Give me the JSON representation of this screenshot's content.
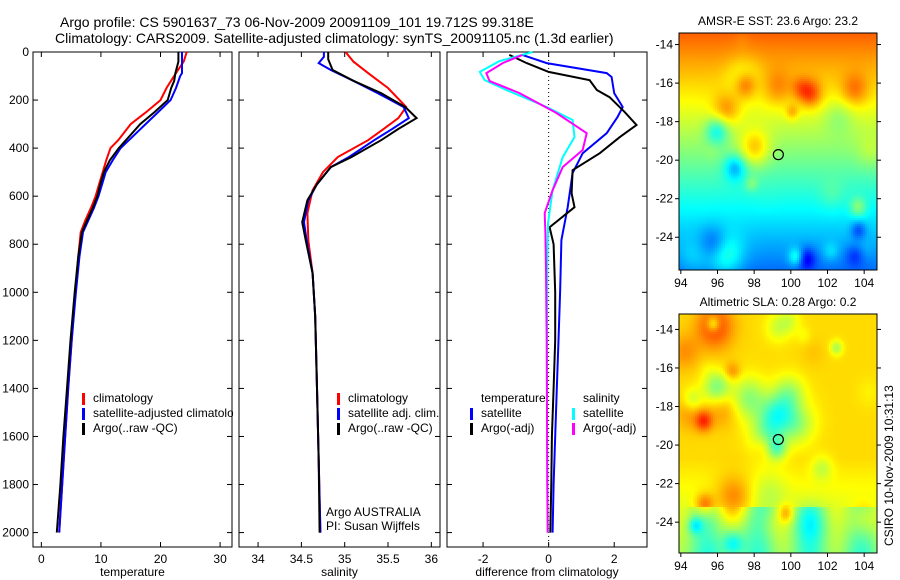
{
  "title_line1": "Argo profile: CS 5901637_73 06-Nov-2009 20091109_101 19.712S 99.318E",
  "title_line2": "Climatology: CARS2009. Satellite-adjusted climatology: synTS_20091105.nc (1.3d earlier)",
  "side_stamp": "CSIRO 10-Nov-2009 10:31:13",
  "colors": {
    "climatology": "#ff0000",
    "satellite": "#0000ff",
    "argo": "#000000",
    "sal_satellite": "#00ffff",
    "sal_argo": "#ff00ff"
  },
  "legends": {
    "temperature": [
      "climatology",
      "satellite-adjusted climatology",
      "Argo(..raw -QC)"
    ],
    "salinity": [
      "climatology",
      "satellite adj. clim.",
      "Argo(..raw -QC)"
    ],
    "diff_temp_header": "temperature",
    "diff_temp": [
      "satellite",
      "Argo(-adj)"
    ],
    "diff_sal_header": "salinity",
    "diff_sal": [
      "satellite",
      "Argo(-adj)"
    ]
  },
  "float_info": {
    "line1": "Argo AUSTRALIA",
    "line2": "PI: Susan Wijffels"
  },
  "chart_data": [
    {
      "type": "line",
      "id": "temperature",
      "xlabel": "temperature",
      "ylabel": "",
      "xlim": [
        -1.4,
        32
      ],
      "ylim": [
        0,
        2060
      ],
      "xticks": [
        0,
        10,
        20,
        30
      ],
      "yticks": [
        0,
        200,
        400,
        600,
        800,
        1000,
        1200,
        1400,
        1600,
        1800,
        2000
      ],
      "series": [
        {
          "name": "climatology",
          "color": "#ff0000",
          "depth": [
            0,
            40,
            88,
            150,
            200,
            250,
            300,
            367,
            400,
            450,
            500,
            550,
            600,
            650,
            700,
            750,
            850,
            1000,
            1200,
            1400,
            1600,
            1800,
            2000
          ],
          "values": [
            24.4,
            23.9,
            22.6,
            21.0,
            20.0,
            17.6,
            15.0,
            12.9,
            11.6,
            10.9,
            10.3,
            9.7,
            9.1,
            8.3,
            7.4,
            6.6,
            6.2,
            5.7,
            5.1,
            4.5,
            4.0,
            3.5,
            3.0
          ]
        },
        {
          "name": "satellite-adjusted climatology",
          "color": "#0000ff",
          "depth": [
            0,
            60,
            88,
            100,
            150,
            200,
            250,
            300,
            367,
            400,
            450,
            500,
            550,
            600,
            650,
            700,
            750,
            850,
            1000,
            1200,
            1400,
            1600,
            1800,
            2000
          ],
          "values": [
            23.6,
            23.6,
            23.6,
            23.3,
            22.6,
            21.7,
            19.6,
            17.5,
            14.7,
            13.3,
            12.0,
            10.8,
            10.2,
            9.6,
            8.8,
            7.9,
            7.0,
            6.4,
            5.8,
            5.1,
            4.5,
            4.0,
            3.5,
            3.0
          ]
        },
        {
          "name": "Argo(..raw -QC)",
          "color": "#000000",
          "depth": [
            0,
            40,
            88,
            120,
            150,
            200,
            250,
            300,
            367,
            400,
            450,
            500,
            550,
            600,
            650,
            700,
            750,
            850,
            1000,
            1200,
            1400,
            1600,
            1800,
            2000
          ],
          "values": [
            23.0,
            23.0,
            22.5,
            22.3,
            21.8,
            21.2,
            19.0,
            16.6,
            14.2,
            13.0,
            11.5,
            10.5,
            9.9,
            9.4,
            8.6,
            7.7,
            6.8,
            6.2,
            5.6,
            4.9,
            4.3,
            3.7,
            3.2,
            2.6
          ]
        }
      ]
    },
    {
      "type": "line",
      "id": "salinity",
      "xlabel": "salinity",
      "ylabel": "",
      "xlim": [
        33.78,
        36.1
      ],
      "ylim": [
        0,
        2060
      ],
      "xticks": [
        34,
        34.5,
        35,
        35.5,
        36
      ],
      "yticks": [
        0,
        200,
        400,
        600,
        800,
        1000,
        1200,
        1400,
        1600,
        1800,
        2000
      ],
      "series": [
        {
          "name": "climatology",
          "color": "#ff0000",
          "depth": [
            0,
            40,
            88,
            150,
            229,
            275,
            320,
            367,
            437,
            500,
            575,
            671,
            783,
            921,
            1100,
            1400,
            1700,
            2000
          ],
          "values": [
            35.01,
            35.1,
            35.27,
            35.5,
            35.71,
            35.62,
            35.45,
            35.27,
            34.92,
            34.75,
            34.63,
            34.57,
            34.58,
            34.63,
            34.66,
            34.68,
            34.7,
            34.72
          ]
        },
        {
          "name": "satellite adj. clim.",
          "color": "#0000ff",
          "depth": [
            0,
            20,
            46,
            75,
            120,
            171,
            229,
            275,
            320,
            367,
            437,
            479,
            550,
            617,
            708,
            783,
            921,
            1100,
            1400,
            1700,
            2000
          ],
          "values": [
            34.76,
            34.76,
            34.7,
            34.84,
            35.1,
            35.38,
            35.68,
            35.74,
            35.55,
            35.34,
            35.05,
            34.84,
            34.68,
            34.58,
            34.53,
            34.56,
            34.63,
            34.66,
            34.68,
            34.7,
            34.72
          ]
        },
        {
          "name": "Argo(..raw -QC)",
          "color": "#000000",
          "depth": [
            0,
            10,
            30,
            75,
            120,
            171,
            229,
            275,
            320,
            367,
            437,
            479,
            550,
            617,
            708,
            783,
            921,
            1100,
            1400,
            1700,
            2000
          ],
          "values": [
            34.81,
            34.81,
            34.81,
            34.86,
            35.1,
            35.42,
            35.7,
            35.83,
            35.62,
            35.42,
            35.08,
            34.84,
            34.68,
            34.57,
            34.51,
            34.55,
            34.63,
            34.66,
            34.68,
            34.7,
            34.71
          ]
        }
      ]
    },
    {
      "type": "line",
      "id": "difference",
      "xlabel": "difference from climatology",
      "ylabel": "",
      "xlim": [
        -3.1,
        3.0
      ],
      "ylim": [
        0,
        2060
      ],
      "xticks": [
        -2,
        0,
        2
      ],
      "yticks": [
        0,
        200,
        400,
        600,
        800,
        1000,
        1200,
        1400,
        1600,
        1800,
        2000
      ],
      "zero_line": 0,
      "series": [
        {
          "name": "temperature satellite",
          "color": "#0000ff",
          "depth": [
            12,
            46,
            88,
            104,
            171,
            229,
            271,
            338,
            421,
            504,
            646,
            783,
            1000,
            1200,
            1400,
            1600,
            1800,
            2000
          ],
          "values": [
            -0.8,
            -0.06,
            1.77,
            1.92,
            2.0,
            2.26,
            2.1,
            1.77,
            1.04,
            0.73,
            0.58,
            0.39,
            0.35,
            0.3,
            0.25,
            0.2,
            0.15,
            0.12
          ]
        },
        {
          "name": "temperature Argo(-adj)",
          "color": "#000000",
          "depth": [
            12,
            46,
            83,
            117,
            158,
            188,
            250,
            304,
            354,
            421,
            492,
            588,
            646,
            729,
            800,
            1000,
            1200,
            1400,
            1600,
            1800,
            2000
          ],
          "values": [
            -1.2,
            -0.67,
            0.0,
            1.25,
            1.47,
            1.86,
            2.32,
            2.68,
            2.17,
            1.56,
            0.73,
            0.7,
            0.79,
            0.03,
            0.15,
            0.2,
            0.2,
            0.15,
            0.1,
            0.08,
            0.05
          ]
        },
        {
          "name": "salinity satellite",
          "color": "#00ffff",
          "depth": [
            0,
            38,
            83,
            117,
            158,
            229,
            283,
            354,
            438,
            575,
            713,
            900,
            1200,
            1500,
            1800,
            2000
          ],
          "values": [
            -0.49,
            -1.5,
            -2.1,
            -1.95,
            -1.29,
            -0.06,
            0.73,
            0.79,
            0.43,
            0.12,
            -0.02,
            -0.04,
            -0.05,
            -0.05,
            -0.04,
            -0.03
          ]
        },
        {
          "name": "salinity Argo(-adj)",
          "color": "#ff00ff",
          "depth": [
            12,
            46,
            88,
            121,
            171,
            254,
            338,
            408,
            479,
            575,
            671,
            754,
            900,
            1200,
            1500,
            1800,
            2000
          ],
          "values": [
            -0.8,
            -1.4,
            -1.9,
            -1.8,
            -0.89,
            0.24,
            1.16,
            1.04,
            0.43,
            0.12,
            -0.12,
            -0.1,
            -0.08,
            -0.06,
            -0.05,
            -0.04,
            -0.03
          ]
        }
      ]
    },
    {
      "type": "heatmap",
      "id": "sst_map",
      "title": "AMSR-E SST: 23.6 Argo: 23.2",
      "xlim": [
        93.9,
        104.7
      ],
      "ylim": [
        -25.7,
        -13.4
      ],
      "xticks": [
        94,
        96,
        98,
        100,
        102,
        104
      ],
      "yticks": [
        -14,
        -16,
        -18,
        -20,
        -22,
        -24
      ],
      "xtick_labels": [
        "94",
        "96",
        "98",
        "100",
        "102",
        "104"
      ],
      "ytick_labels": [
        "-14",
        "-16",
        "-18",
        "-20",
        "-22",
        "-24"
      ],
      "marker": {
        "lon": 99.318,
        "lat": -19.712
      }
    },
    {
      "type": "heatmap",
      "id": "sla_map",
      "title": "Altimetric SLA: 0.28 Argo: 0.2",
      "xlim": [
        93.9,
        104.7
      ],
      "ylim": [
        -25.6,
        -13.2
      ],
      "xticks": [
        94,
        96,
        98,
        100,
        102,
        104
      ],
      "yticks": [
        -14,
        -16,
        -18,
        -20,
        -22,
        -24
      ],
      "xtick_labels": [
        "94",
        "96",
        "98",
        "100",
        "102",
        "104"
      ],
      "ytick_labels": [
        "-14",
        "-16",
        "-18",
        "-20",
        "-22",
        "-24"
      ],
      "marker": {
        "lon": 99.318,
        "lat": -19.712
      }
    }
  ]
}
